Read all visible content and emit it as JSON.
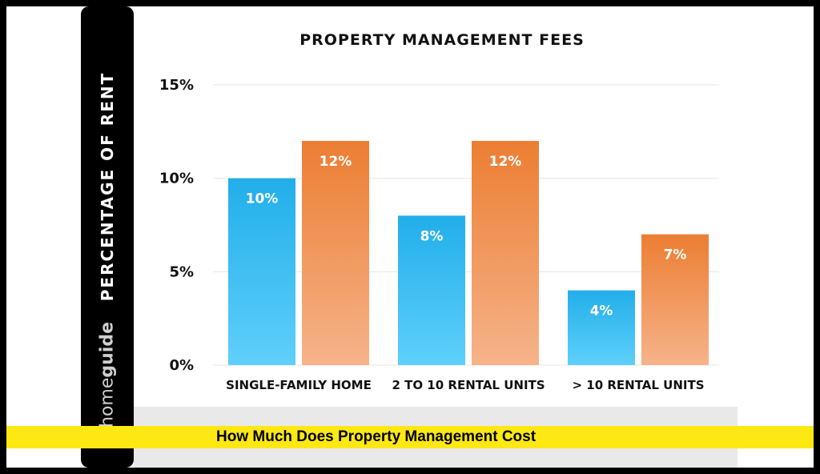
{
  "chart_data": {
    "type": "bar",
    "title": "PROPERTY MANAGEMENT FEES",
    "ylabel": "PERCENTAGE OF RENT",
    "ylim": [
      0,
      15
    ],
    "yticks": [
      "0%",
      "5%",
      "10%",
      "15%"
    ],
    "categories": [
      "SINGLE-FAMILY HOME",
      "2 TO 10 RENTAL UNITS",
      "> 10 RENTAL UNITS"
    ],
    "series": [
      {
        "values": [
          10,
          8,
          4
        ],
        "labels": [
          "10%",
          "8%",
          "4%"
        ],
        "color": "#2eb6ec"
      },
      {
        "values": [
          12,
          12,
          7
        ],
        "labels": [
          "12%",
          "12%",
          "7%"
        ],
        "color": "#ef8a3e"
      }
    ],
    "grid": true
  },
  "brand": {
    "part1": "home",
    "part2": "guide"
  },
  "banner": "How Much Does Property Management Cost"
}
